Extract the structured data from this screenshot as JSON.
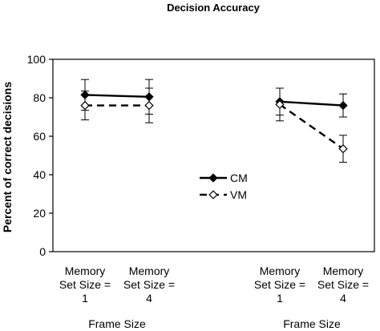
{
  "chart_data": {
    "type": "line",
    "title": "Decision Accuracy",
    "ylabel": "Percent of correct decisions",
    "xlabel": "",
    "ylim": [
      0,
      100
    ],
    "yticks": [
      0,
      20,
      40,
      60,
      80,
      100
    ],
    "grid": false,
    "legend_position": "center",
    "categories": [
      {
        "lines": [
          "Memory",
          "Set Size =",
          "1"
        ]
      },
      {
        "lines": [
          "Memory",
          "Set Size =",
          "4"
        ]
      },
      {
        "lines": [
          "Memory",
          "Set Size =",
          "1"
        ]
      },
      {
        "lines": [
          "Memory",
          "Set Size =",
          "4"
        ]
      }
    ],
    "group_labels": [
      "Frame Size",
      "Frame Size"
    ],
    "series": [
      {
        "name": "CM",
        "marker": "filled-diamond",
        "line_style": "solid",
        "color": "#000000",
        "values": [
          81.5,
          80.5,
          78,
          76
        ],
        "error": [
          8,
          9,
          7,
          6
        ]
      },
      {
        "name": "VM",
        "marker": "open-diamond",
        "line_style": "dashed",
        "color": "#000000",
        "values": [
          76,
          76,
          76.5,
          53.5
        ],
        "error": [
          7.5,
          9,
          8.5,
          7
        ]
      }
    ]
  }
}
